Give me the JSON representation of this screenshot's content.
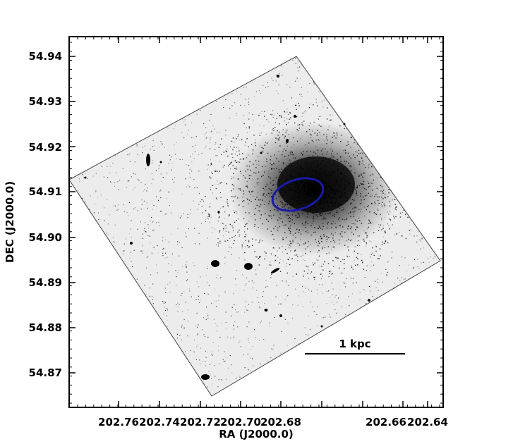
{
  "image": {
    "description_label": "astronomical-image-galaxy-field",
    "colors": {
      "background": "#ffffff",
      "pixels": "#000000",
      "ellipse": "#1a1aa8",
      "axes": "#000000"
    }
  },
  "axes": {
    "x_title": "RA (J2000.0)",
    "y_title": "DEC (J2000.0)",
    "x_ticks": [
      "202.76",
      "202.74",
      "202.72",
      "202.70",
      "202.68",
      "202.66",
      "202.64"
    ],
    "y_ticks": [
      "54.94",
      "54.93",
      "54.92",
      "54.91",
      "54.90",
      "54.89",
      "54.88",
      "54.87"
    ]
  },
  "scale_bar": {
    "label": "1 kpc"
  }
}
